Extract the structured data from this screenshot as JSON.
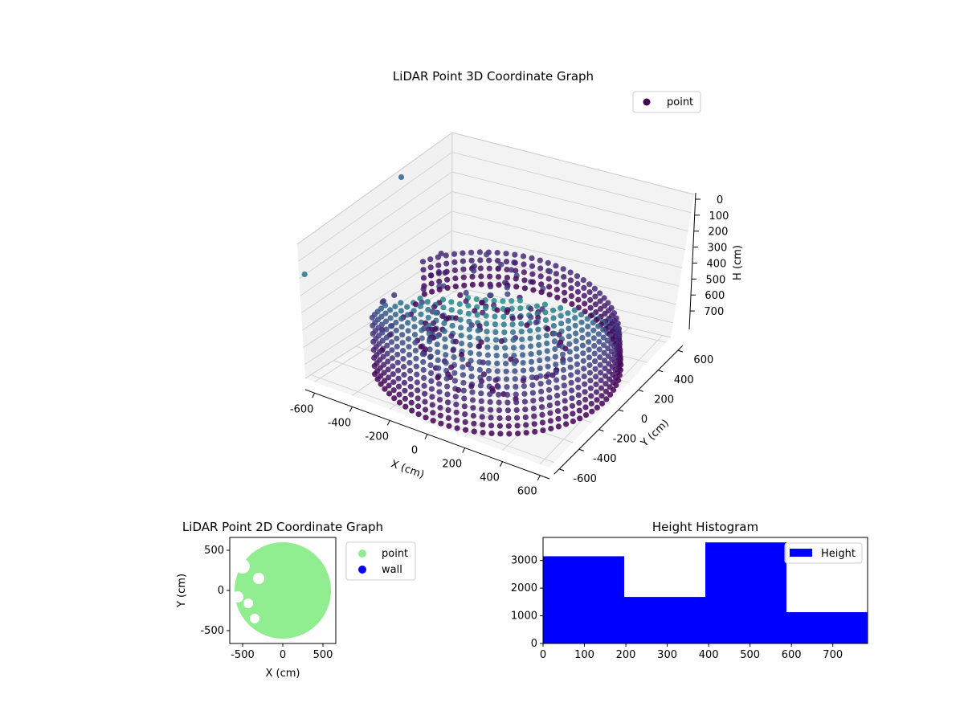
{
  "figure": {
    "background": "#ffffff"
  },
  "chart_data": [
    {
      "id": "lidar-3d",
      "type": "scatter",
      "title": "LiDAR Point 3D Coordinate Graph",
      "xlabel": "X (cm)",
      "ylabel": "Y (cm)",
      "zlabel": "H (cm)",
      "x_ticks": [
        -600,
        -400,
        -200,
        0,
        200,
        400,
        600
      ],
      "y_ticks": [
        -600,
        -400,
        -200,
        0,
        200,
        400,
        600
      ],
      "z_ticks": [
        0,
        100,
        200,
        300,
        400,
        500,
        600,
        700
      ],
      "xlim": [
        -650,
        650
      ],
      "ylim": [
        -650,
        650
      ],
      "zlim": [
        0,
        780
      ],
      "z_inverted": true,
      "grid": true,
      "colormap": "viridis",
      "legend": {
        "entries": [
          {
            "label": "point",
            "color": "#440154"
          }
        ],
        "placement": "top-right"
      },
      "description_of_points": "Approx. 600 cm radius curved wall with points from H 0 to 780 cm plus scattered interior points",
      "sample_points": [
        {
          "x": 560,
          "y": 200,
          "h": 0
        },
        {
          "x": 560,
          "y": 200,
          "h": 700
        },
        {
          "x": 0,
          "y": 600,
          "h": 0
        },
        {
          "x": -500,
          "y": 300,
          "h": 200
        },
        {
          "x": -600,
          "y": -100,
          "h": 300
        },
        {
          "x": 100,
          "y": -560,
          "h": 780
        },
        {
          "x": 400,
          "y": -420,
          "h": 600
        },
        {
          "x": -200,
          "y": 100,
          "h": 100
        },
        {
          "x": -700,
          "y": 400,
          "h": 500
        },
        {
          "x": -640,
          "y": -650,
          "h": 600
        }
      ]
    },
    {
      "id": "lidar-2d",
      "type": "scatter",
      "title": "LiDAR Point 2D Coordinate Graph",
      "xlabel": "X (cm)",
      "ylabel": "Y (cm)",
      "x_ticks": [
        -500,
        0,
        500
      ],
      "y_ticks": [
        -500,
        0,
        500
      ],
      "xlim": [
        -660,
        660
      ],
      "ylim": [
        -660,
        660
      ],
      "grid": false,
      "series": [
        {
          "name": "point",
          "color": "#90ee90"
        },
        {
          "name": "wall",
          "color": "#0000ff"
        }
      ],
      "legend_placement": "outside-right"
    },
    {
      "id": "height-histogram",
      "type": "bar",
      "title": "Height Histogram",
      "xlabel": "",
      "ylabel": "",
      "bins": [
        [
          0,
          196
        ],
        [
          196,
          392
        ],
        [
          392,
          588
        ],
        [
          588,
          784
        ]
      ],
      "values": [
        3150,
        1680,
        3650,
        1130
      ],
      "x_ticks": [
        0,
        100,
        200,
        300,
        400,
        500,
        600,
        700
      ],
      "y_ticks": [
        0,
        1000,
        2000,
        3000
      ],
      "xlim": [
        0,
        784
      ],
      "ylim": [
        0,
        3830
      ],
      "bar_color": "#0000ff",
      "legend": {
        "entries": [
          {
            "label": "Height",
            "color": "#0000ff"
          }
        ],
        "placement": "top-right"
      }
    }
  ]
}
